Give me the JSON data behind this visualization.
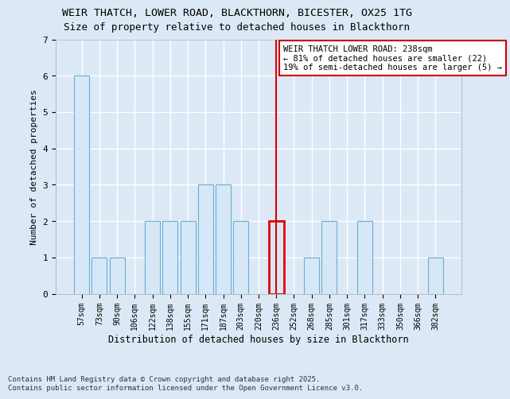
{
  "title": "WEIR THATCH, LOWER ROAD, BLACKTHORN, BICESTER, OX25 1TG",
  "subtitle": "Size of property relative to detached houses in Blackthorn",
  "xlabel": "Distribution of detached houses by size in Blackthorn",
  "ylabel": "Number of detached properties",
  "categories": [
    "57sqm",
    "73sqm",
    "90sqm",
    "106sqm",
    "122sqm",
    "138sqm",
    "155sqm",
    "171sqm",
    "187sqm",
    "203sqm",
    "220sqm",
    "236sqm",
    "252sqm",
    "268sqm",
    "285sqm",
    "301sqm",
    "317sqm",
    "333sqm",
    "350sqm",
    "366sqm",
    "382sqm"
  ],
  "values": [
    6,
    1,
    1,
    0,
    2,
    2,
    2,
    3,
    3,
    2,
    0,
    2,
    0,
    1,
    2,
    0,
    2,
    0,
    0,
    0,
    1
  ],
  "bar_color": "#d6e8f7",
  "bar_edge_color": "#6aaed6",
  "highlight_index": 11,
  "highlight_color": "#dd0000",
  "annotation_text": "WEIR THATCH LOWER ROAD: 238sqm\n← 81% of detached houses are smaller (22)\n19% of semi-detached houses are larger (5) →",
  "annotation_box_color": "#ffffff",
  "annotation_box_edge": "#cc0000",
  "ylim": [
    0,
    7
  ],
  "yticks": [
    0,
    1,
    2,
    3,
    4,
    5,
    6,
    7
  ],
  "footer": "Contains HM Land Registry data © Crown copyright and database right 2025.\nContains public sector information licensed under the Open Government Licence v3.0.",
  "background_color": "#dce8f5",
  "plot_bg_color": "#dce8f5",
  "grid_color": "#ffffff",
  "title_fontsize": 9.5,
  "xlabel_fontsize": 8.5,
  "ylabel_fontsize": 8,
  "tick_fontsize": 7,
  "footer_fontsize": 6.5
}
